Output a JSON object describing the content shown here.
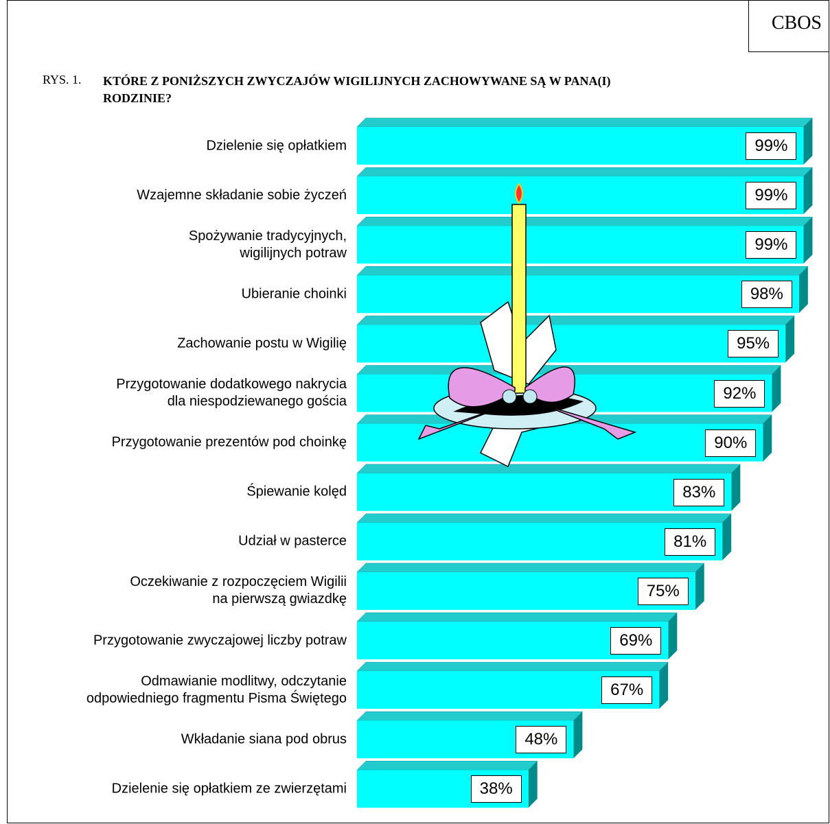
{
  "chart_data": {
    "type": "bar",
    "orientation": "horizontal",
    "source": "CBOS",
    "figure_label": "RYS. 1.",
    "title": "KTÓRE Z PONIŻSZYCH ZWYCZAJÓW WIGILIJNYCH ZACHOWYWANE SĄ W PANA(I)\nRODZINIE?",
    "categories": [
      "Dzielenie się opłatkiem",
      "Wzajemne składanie sobie życzeń",
      "Spożywanie tradycyjnych,\nwigilijnych potraw",
      "Ubieranie choinki",
      "Zachowanie postu w Wigilię",
      "Przygotowanie dodatkowego nakrycia\ndla niespodziewanego gościa",
      "Przygotowanie prezentów pod choinkę",
      "Śpiewanie kolęd",
      "Udział w pasterce",
      "Oczekiwanie z rozpoczęciem Wigilii\nna pierwszą gwiazdkę",
      "Przygotowanie zwyczajowej liczby potraw",
      "Odmawianie modlitwy, odczytanie\nodpowiedniego fragmentu Pisma Świętego",
      "Wkładanie siana pod obrus",
      "Dzielenie się opłatkiem ze zwierzętami"
    ],
    "values": [
      99,
      99,
      99,
      98,
      95,
      92,
      90,
      83,
      81,
      75,
      69,
      67,
      48,
      38
    ],
    "value_labels": [
      "99%",
      "99%",
      "99%",
      "98%",
      "95%",
      "92%",
      "90%",
      "83%",
      "81%",
      "75%",
      "69%",
      "67%",
      "48%",
      "38%"
    ],
    "xlim": [
      0,
      100
    ],
    "color": "#00ffff"
  }
}
